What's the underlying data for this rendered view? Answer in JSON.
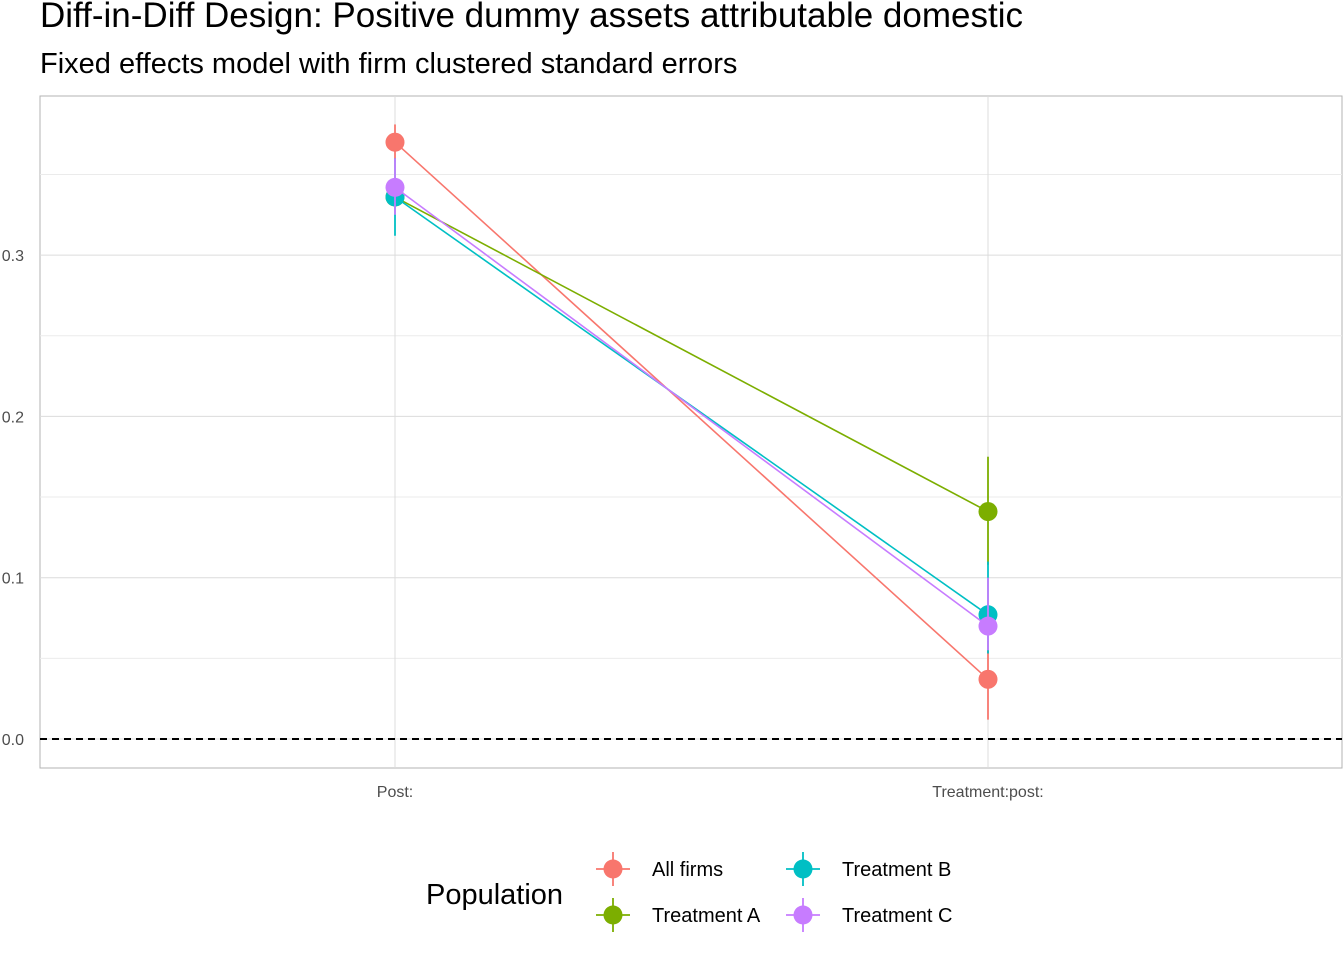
{
  "chart_data": {
    "type": "line",
    "title": "Diff-in-Diff Design: Positive dummy assets attributable domestic",
    "subtitle": "Fixed effects model with firm clustered standard errors",
    "xlabel": "",
    "ylabel": "",
    "categories": [
      "Post:",
      "Treatment:post:"
    ],
    "ylim": [
      -0.018,
      0.4
    ],
    "y_ticks": [
      0.0,
      0.1,
      0.2,
      0.3
    ],
    "y_tick_labels": [
      "0.0",
      "0.1",
      "0.2",
      "0.3"
    ],
    "reference_line": {
      "y": 0.0,
      "style": "dashed"
    },
    "grid": true,
    "legend": {
      "title": "Population",
      "placement": "bottom"
    },
    "series": [
      {
        "name": "All firms",
        "color": "#F8766D",
        "values": [
          0.37,
          0.037
        ],
        "lower": [
          0.358,
          0.012
        ],
        "upper": [
          0.381,
          0.061
        ]
      },
      {
        "name": "Treatment A",
        "color": "#7CAE00",
        "values": [
          0.336,
          0.141
        ],
        "lower": [
          0.334,
          0.108
        ],
        "upper": [
          0.339,
          0.175
        ]
      },
      {
        "name": "Treatment B",
        "color": "#00BFC4",
        "values": [
          0.336,
          0.077
        ],
        "lower": [
          0.312,
          0.053
        ],
        "upper": [
          0.36,
          0.11
        ]
      },
      {
        "name": "Treatment C",
        "color": "#C77CFF",
        "values": [
          0.342,
          0.07
        ],
        "lower": [
          0.325,
          0.055
        ],
        "upper": [
          0.36,
          0.1
        ]
      }
    ]
  }
}
